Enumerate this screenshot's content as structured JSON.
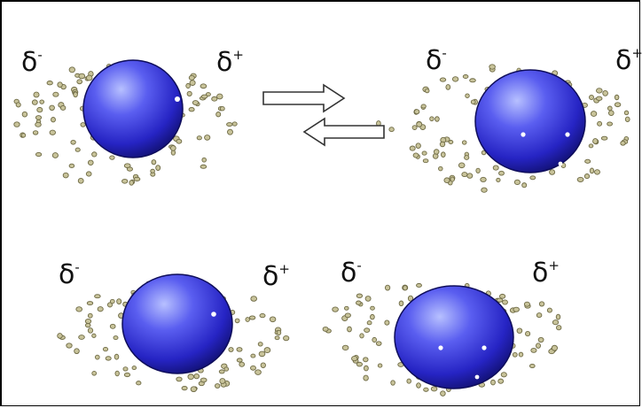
{
  "labels": {
    "neg": "δ",
    "neg_sign": "-",
    "pos": "δ",
    "pos_sign": "+"
  },
  "colors": {
    "particle_fill": "#c8c39a",
    "particle_stroke": "#6e6a45",
    "sphere_light": "#9aa6ff",
    "sphere_mid": "#3b3ad8",
    "sphere_dark": "#14138a",
    "arrow_fill": "#ffffff",
    "arrow_stroke": "#333333"
  },
  "icons": {
    "forward_arrow": "right-arrow-icon",
    "reverse_arrow": "left-arrow-icon"
  }
}
